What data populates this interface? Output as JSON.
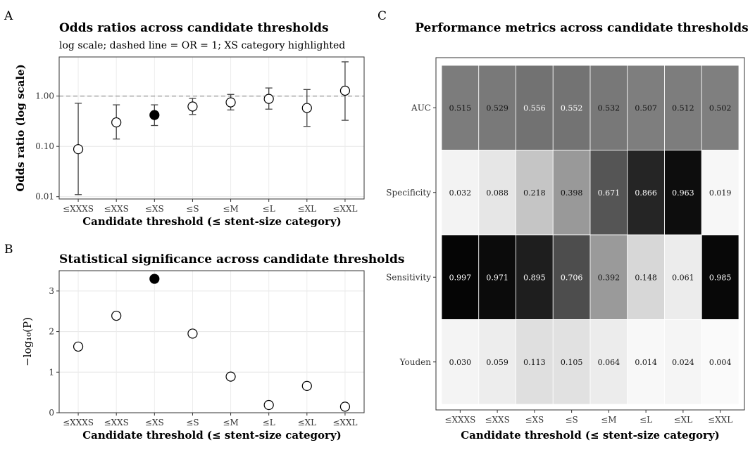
{
  "panels": {
    "a_letter": "A",
    "b_letter": "B",
    "c_letter": "C"
  },
  "chart_data": [
    {
      "id": "A",
      "type": "scatter",
      "title": "Odds ratios across candidate thresholds",
      "subtitle": "log scale; dashed line = OR = 1; XS category highlighted",
      "xlabel": "Candidate threshold (≤ stent-size category)",
      "ylabel": "Odds ratio (log scale)",
      "y_scale": "log",
      "ylim": [
        0.009,
        6
      ],
      "yticks": [
        0.01,
        0.1,
        1
      ],
      "ytick_labels": [
        "0.01",
        "0.10",
        "1.00"
      ],
      "reference_line": 1,
      "categories": [
        "≤XXXS",
        "≤XXS",
        "≤XS",
        "≤S",
        "≤M",
        "≤L",
        "≤XL",
        "≤XXL"
      ],
      "values": [
        0.088,
        0.3,
        0.42,
        0.62,
        0.75,
        0.88,
        0.58,
        1.28
      ],
      "ci_lower": [
        0.011,
        0.14,
        0.26,
        0.43,
        0.53,
        0.55,
        0.25,
        0.33
      ],
      "ci_upper": [
        0.72,
        0.67,
        0.67,
        0.9,
        1.08,
        1.45,
        1.35,
        4.8
      ],
      "highlight": "≤XS",
      "grid": true
    },
    {
      "id": "B",
      "type": "scatter",
      "title": "Statistical significance across candidate thresholds",
      "xlabel": "Candidate threshold (≤ stent-size category)",
      "ylabel": "−log₁₀(P)",
      "ylim": [
        0,
        3.5
      ],
      "yticks": [
        0,
        1,
        2,
        3
      ],
      "ytick_labels": [
        "0",
        "1",
        "2",
        "3"
      ],
      "categories": [
        "≤XXXS",
        "≤XXS",
        "≤XS",
        "≤S",
        "≤M",
        "≤L",
        "≤XL",
        "≤XXL"
      ],
      "values": [
        1.63,
        2.39,
        3.3,
        1.95,
        0.89,
        0.19,
        0.66,
        0.15
      ],
      "highlight": "≤XS",
      "grid": true
    },
    {
      "id": "C",
      "type": "heatmap",
      "title": "Performance metrics across candidate thresholds",
      "xlabel": "Candidate threshold (≤ stent-size category)",
      "rows": [
        "AUC",
        "Specificity",
        "Sensitivity",
        "Youden"
      ],
      "columns": [
        "≤XXXS",
        "≤XXS",
        "≤XS",
        "≤S",
        "≤M",
        "≤L",
        "≤XL",
        "≤XXL"
      ],
      "values": [
        [
          0.515,
          0.529,
          0.556,
          0.552,
          0.532,
          0.507,
          0.512,
          0.502
        ],
        [
          0.032,
          0.088,
          0.218,
          0.398,
          0.671,
          0.866,
          0.963,
          0.019
        ],
        [
          0.997,
          0.971,
          0.895,
          0.706,
          0.392,
          0.148,
          0.061,
          0.985
        ],
        [
          0.03,
          0.059,
          0.113,
          0.105,
          0.064,
          0.014,
          0.024,
          0.004
        ]
      ],
      "labels": [
        [
          "0.515",
          "0.529",
          "0.556",
          "0.552",
          "0.532",
          "0.507",
          "0.512",
          "0.502"
        ],
        [
          "0.032",
          "0.088",
          "0.218",
          "0.398",
          "0.671",
          "0.866",
          "0.963",
          "0.019"
        ],
        [
          "0.997",
          "0.971",
          "0.895",
          "0.706",
          "0.392",
          "0.148",
          "0.061",
          "0.985"
        ],
        [
          "0.030",
          "0.059",
          "0.113",
          "0.105",
          "0.064",
          "0.014",
          "0.024",
          "0.004"
        ]
      ],
      "color_scale": "grayscale (white = 0, black = 1)"
    }
  ]
}
